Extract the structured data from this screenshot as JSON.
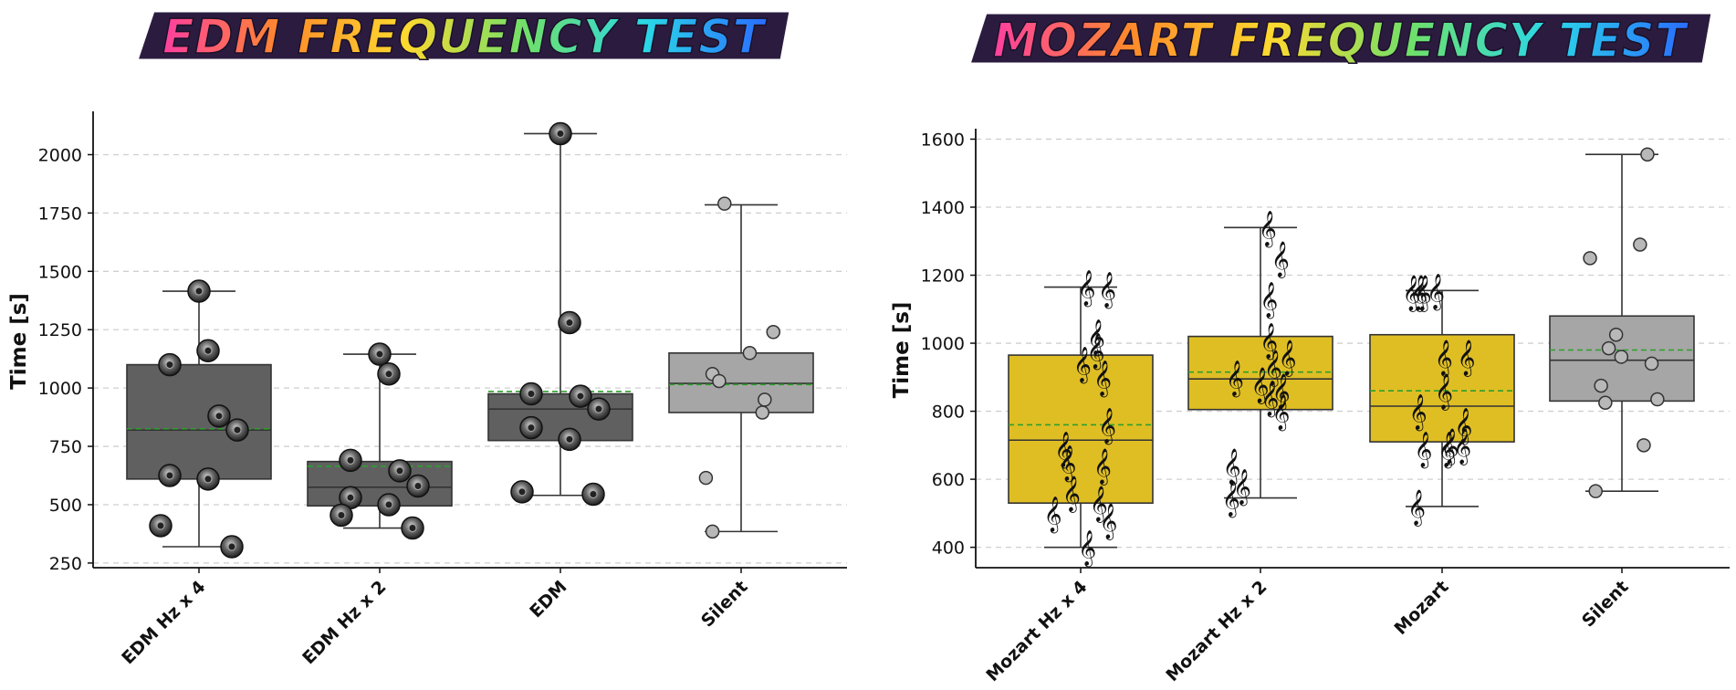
{
  "colors": {
    "edm_box": "#606060",
    "silent_box": "#a6a6a6",
    "mozart_box": "#dfbe24",
    "mean_line": "#2ca02c",
    "grid": "#cfcfcf",
    "banner_bg": "#2b1c3f"
  },
  "icons": {
    "edm_point": "speaker-icon",
    "mozart_point": "treble-clef-icon",
    "silent_point": "circle-marker"
  },
  "chart_data": [
    {
      "type": "box",
      "banner_title": "EDM FREQUENCY TEST",
      "ylabel": "Time [s]",
      "ylim": [
        230,
        2170
      ],
      "yticks": [
        "250",
        "500",
        "750",
        "1000",
        "1250",
        "1500",
        "1750",
        "2000"
      ],
      "grid": true,
      "categories": [
        "EDM Hz x 4",
        "EDM Hz x 2",
        "EDM",
        "Silent"
      ],
      "series": [
        {
          "category": "EDM Hz x 4",
          "style": "speaker",
          "box": {
            "q1": 610,
            "median": 820,
            "q3": 1100,
            "mean": 825,
            "whislo": 320,
            "whishi": 1415
          },
          "points": [
            1415,
            1160,
            1100,
            880,
            820,
            625,
            610,
            410,
            320
          ]
        },
        {
          "category": "EDM Hz x 2",
          "style": "speaker",
          "box": {
            "q1": 495,
            "median": 575,
            "q3": 685,
            "mean": 665,
            "whislo": 400,
            "whishi": 1145
          },
          "points": [
            1145,
            1060,
            690,
            645,
            580,
            530,
            500,
            455,
            400
          ]
        },
        {
          "category": "EDM",
          "style": "speaker",
          "box": {
            "q1": 775,
            "median": 910,
            "q3": 975,
            "mean": 985,
            "whislo": 540,
            "whishi": 2090
          },
          "points": [
            2090,
            1280,
            975,
            965,
            910,
            830,
            780,
            555,
            545
          ]
        },
        {
          "category": "Silent",
          "style": "silent",
          "box": {
            "q1": 895,
            "median": 1020,
            "q3": 1150,
            "mean": 1015,
            "whislo": 385,
            "whishi": 1785
          },
          "points": [
            1790,
            1240,
            1150,
            1060,
            1030,
            950,
            895,
            615,
            385
          ]
        }
      ]
    },
    {
      "type": "box",
      "banner_title": "MOZART FREQUENCY TEST",
      "ylabel": "Time [s]",
      "ylim": [
        340,
        1620
      ],
      "yticks": [
        "400",
        "600",
        "800",
        "1000",
        "1200",
        "1400",
        "1600"
      ],
      "grid": true,
      "categories": [
        "Mozart Hz x 4",
        "Mozart Hz x 2",
        "Mozart",
        "Silent"
      ],
      "series": [
        {
          "category": "Mozart Hz x 4",
          "style": "clef",
          "box": {
            "q1": 530,
            "median": 715,
            "q3": 965,
            "mean": 760,
            "whislo": 400,
            "whishi": 1165
          },
          "points": [
            1165,
            1160,
            1020,
            980,
            940,
            900,
            760,
            690,
            650,
            640,
            560,
            530,
            500,
            480,
            400
          ]
        },
        {
          "category": "Mozart Hz x 2",
          "style": "clef",
          "box": {
            "q1": 805,
            "median": 895,
            "q3": 1020,
            "mean": 915,
            "whislo": 545,
            "whishi": 1340
          },
          "points": [
            1340,
            1250,
            1130,
            1010,
            960,
            930,
            900,
            880,
            860,
            840,
            800,
            640,
            580,
            545
          ]
        },
        {
          "category": "Mozart",
          "style": "clef",
          "box": {
            "q1": 710,
            "median": 815,
            "q3": 1025,
            "mean": 860,
            "whislo": 520,
            "whishi": 1155
          },
          "points": [
            1155,
            1150,
            1150,
            1150,
            960,
            960,
            860,
            800,
            760,
            700,
            700,
            690,
            690,
            520
          ]
        },
        {
          "category": "Silent",
          "style": "silent",
          "box": {
            "q1": 830,
            "median": 950,
            "q3": 1080,
            "mean": 980,
            "whislo": 565,
            "whishi": 1555
          },
          "points": [
            1555,
            1290,
            1250,
            1025,
            985,
            960,
            940,
            875,
            835,
            825,
            700,
            565
          ]
        }
      ]
    }
  ]
}
